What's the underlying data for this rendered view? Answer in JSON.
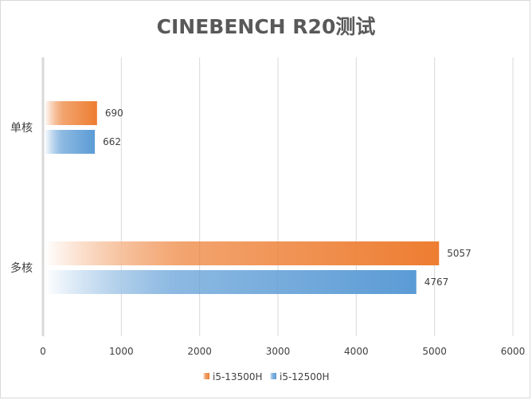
{
  "chart_data": {
    "type": "bar",
    "orientation": "horizontal",
    "title": "CINEBENCH R20测试",
    "categories": [
      "单核",
      "多核"
    ],
    "series": [
      {
        "name": "i5-13500H",
        "values": [
          690,
          5057
        ],
        "color": "#ed7d31"
      },
      {
        "name": "i5-12500H",
        "values": [
          662,
          4767
        ],
        "color": "#5b9bd5"
      }
    ],
    "xlim": [
      0,
      6000
    ],
    "xticks": [
      "0",
      "1000",
      "2000",
      "3000",
      "4000",
      "5000",
      "6000"
    ],
    "grid": true,
    "legend": "bottom",
    "data_labels": true
  }
}
